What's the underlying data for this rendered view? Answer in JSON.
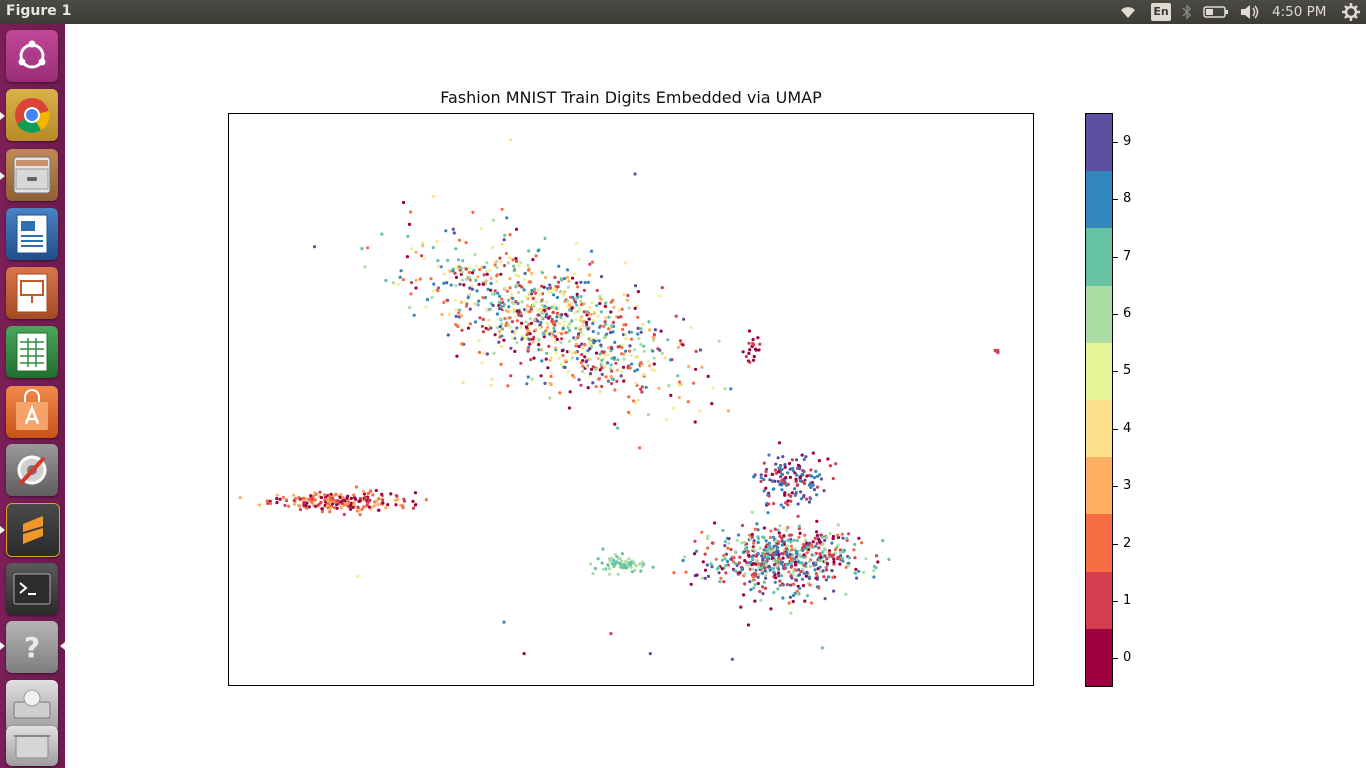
{
  "topbar": {
    "window_title": "Figure 1",
    "keyboard_layout": "En",
    "clock": "4:50 PM",
    "icons": [
      "wifi-icon",
      "keyboard-layout-icon",
      "bluetooth-icon",
      "battery-icon",
      "volume-icon",
      "settings-gear-icon"
    ]
  },
  "launcher": {
    "items": [
      {
        "name": "ubuntu-dash",
        "icon": "ubuntu-logo-icon",
        "color": "#b43a8c"
      },
      {
        "name": "chrome",
        "icon": "chrome-icon",
        "color": "#c9a13a"
      },
      {
        "name": "files",
        "icon": "file-cabinet-icon",
        "color": "#b07a4a"
      },
      {
        "name": "writer",
        "icon": "writer-document-icon",
        "color": "#2b5d9c"
      },
      {
        "name": "impress",
        "icon": "impress-presentation-icon",
        "color": "#c0582a"
      },
      {
        "name": "calc",
        "icon": "calc-spreadsheet-icon",
        "color": "#2e8a3c"
      },
      {
        "name": "software-center",
        "icon": "shopping-bag-icon",
        "color": "#e0692b"
      },
      {
        "name": "system-settings",
        "icon": "wrench-gear-icon",
        "color": "#8a8a8a"
      },
      {
        "name": "sublime-text",
        "icon": "sublime-s-icon",
        "color": "#3f3f3f"
      },
      {
        "name": "terminal",
        "icon": "terminal-icon",
        "color": "#2c2c2c"
      },
      {
        "name": "help",
        "icon": "question-mark-icon",
        "color": "#9a9a9a"
      },
      {
        "name": "drive",
        "icon": "hard-drive-icon",
        "color": "#cfcfcf"
      },
      {
        "name": "trash",
        "icon": "trash-icon",
        "color": "#cfcfcf"
      }
    ]
  },
  "chart_data": {
    "type": "scatter",
    "title": "Fashion MNIST Train Digits Embedded via UMAP",
    "xlabel": "",
    "ylabel": "",
    "xlim": [
      0,
      100
    ],
    "ylim": [
      0,
      100
    ],
    "axis_ticks": "none",
    "grid": false,
    "colormap": "Spectral",
    "colorbar": {
      "ticks": [
        "0",
        "1",
        "2",
        "3",
        "4",
        "5",
        "6",
        "7",
        "8",
        "9"
      ],
      "colors": [
        "#9e0142",
        "#d53e4f",
        "#f46d43",
        "#fdae61",
        "#fee08b",
        "#e6f598",
        "#abdda4",
        "#66c2a5",
        "#3288bd",
        "#5e4fa2"
      ]
    },
    "clusters": [
      {
        "label_mix": [
          0,
          1,
          2,
          3,
          4,
          5,
          6,
          7,
          8,
          9
        ],
        "center": [
          40,
          64
        ],
        "spread": [
          10,
          10
        ],
        "n": 900,
        "note": "large diagonal mixed cluster"
      },
      {
        "label_mix": [
          0,
          1,
          3,
          2
        ],
        "center": [
          14,
          32
        ],
        "spread": [
          8,
          1.6
        ],
        "n": 220
      },
      {
        "label_mix": [
          0,
          1,
          2,
          6,
          7,
          8,
          9
        ],
        "center": [
          69,
          22
        ],
        "spread": [
          8,
          5
        ],
        "n": 600
      },
      {
        "label_mix": [
          7,
          6
        ],
        "center": [
          49,
          21
        ],
        "spread": [
          3,
          1.5
        ],
        "n": 70
      },
      {
        "label_mix": [
          1,
          0
        ],
        "center": [
          65,
          59
        ],
        "spread": [
          1,
          2.5
        ],
        "n": 20
      },
      {
        "label_mix": [
          1
        ],
        "center": [
          95.5,
          58.5
        ],
        "spread": [
          0.3,
          0.3
        ],
        "n": 6
      },
      {
        "label_mix": [
          9,
          8,
          0,
          1
        ],
        "center": [
          70,
          36
        ],
        "spread": [
          4,
          4
        ],
        "n": 150
      }
    ],
    "outliers": [
      {
        "x": 35.0,
        "y": 95.5,
        "label": 4
      },
      {
        "x": 50.5,
        "y": 89.5,
        "label": 9
      },
      {
        "x": 21.7,
        "y": 84.5,
        "label": 0
      },
      {
        "x": 37.8,
        "y": 74.5,
        "label": 0
      },
      {
        "x": 36.7,
        "y": 5.5,
        "label": 0
      },
      {
        "x": 47.5,
        "y": 9.0,
        "label": 1
      },
      {
        "x": 64.6,
        "y": 10.5,
        "label": 0
      },
      {
        "x": 62.6,
        "y": 4.5,
        "label": 9
      },
      {
        "x": 73.8,
        "y": 6.5,
        "label": 7
      },
      {
        "x": 16.0,
        "y": 19.0,
        "label": 5
      },
      {
        "x": 34.2,
        "y": 11.0,
        "label": 8
      },
      {
        "x": 52.4,
        "y": 5.5,
        "label": 9
      }
    ]
  }
}
